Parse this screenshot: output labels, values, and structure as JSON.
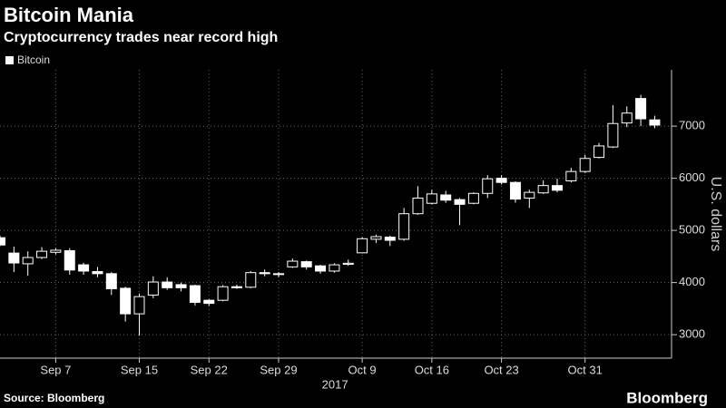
{
  "chart_data": {
    "type": "candlestick",
    "title": "Bitcoin Mania",
    "subtitle": "Cryptocurrency trades near record high",
    "source": "Source: Bloomberg",
    "brand": "Bloomberg",
    "ylabel": "U.S. dollars",
    "year_label": "2017",
    "categories": [
      null,
      null,
      null,
      null,
      "Sep 7",
      null,
      null,
      null,
      null,
      null,
      "Sep 15",
      null,
      null,
      null,
      null,
      "Sep 22",
      null,
      null,
      null,
      null,
      "Sep 29",
      null,
      null,
      null,
      null,
      null,
      "Oct 9",
      null,
      null,
      null,
      null,
      "Oct 16",
      null,
      null,
      null,
      null,
      "Oct 23",
      null,
      null,
      null,
      null,
      null,
      "Oct 31",
      null,
      null,
      null,
      null,
      null
    ],
    "series": [
      {
        "name": "Bitcoin",
        "color": "#ffffff",
        "open": [
          4860,
          4565,
          4360,
          4480,
          4580,
          4610,
          4340,
          4210,
          4170,
          3890,
          3400,
          3760,
          4010,
          3960,
          3940,
          3660,
          3660,
          3920,
          3910,
          4190,
          4170,
          4300,
          4400,
          4320,
          4220,
          4350,
          4570,
          4830,
          4870,
          4830,
          5320,
          5520,
          5680,
          5590,
          5520,
          5710,
          6000,
          5920,
          5620,
          5720,
          5860,
          5950,
          6130,
          6400,
          6600,
          7060,
          7530,
          7120
        ],
        "high": [
          4900,
          4690,
          4600,
          4680,
          4660,
          4660,
          4380,
          4300,
          4200,
          3920,
          3790,
          4120,
          4100,
          4000,
          3960,
          3680,
          3950,
          3960,
          4220,
          4250,
          4200,
          4460,
          4420,
          4340,
          4370,
          4440,
          4870,
          4920,
          4900,
          5430,
          5850,
          5780,
          5760,
          5620,
          5730,
          6060,
          6060,
          5940,
          5780,
          5960,
          5990,
          6200,
          6450,
          6680,
          7400,
          7380,
          7600,
          7200
        ],
        "low": [
          4700,
          4200,
          4130,
          4450,
          4540,
          4150,
          4150,
          4100,
          3760,
          3250,
          2980,
          3700,
          3860,
          3830,
          3560,
          3550,
          3640,
          3880,
          3890,
          4120,
          4100,
          4280,
          4250,
          4170,
          4190,
          4320,
          4560,
          4760,
          4700,
          4800,
          5300,
          5500,
          5530,
          5100,
          5500,
          5620,
          5880,
          5530,
          5430,
          5700,
          5730,
          5920,
          6100,
          6380,
          6580,
          6980,
          7000,
          6960
        ],
        "close": [
          4720,
          4375,
          4480,
          4600,
          4620,
          4240,
          4220,
          4170,
          3880,
          3400,
          3730,
          4010,
          3900,
          3900,
          3620,
          3600,
          3920,
          3900,
          4190,
          4170,
          4160,
          4410,
          4300,
          4220,
          4340,
          4370,
          4840,
          4880,
          4810,
          5320,
          5620,
          5700,
          5580,
          5500,
          5710,
          5990,
          5920,
          5600,
          5730,
          5860,
          5770,
          6130,
          6380,
          6620,
          7050,
          7250,
          7140,
          7020
        ]
      }
    ],
    "ylim": [
      2550,
      8080
    ],
    "yticks": [
      3000,
      4000,
      5000,
      6000,
      7000
    ],
    "grid": true
  }
}
